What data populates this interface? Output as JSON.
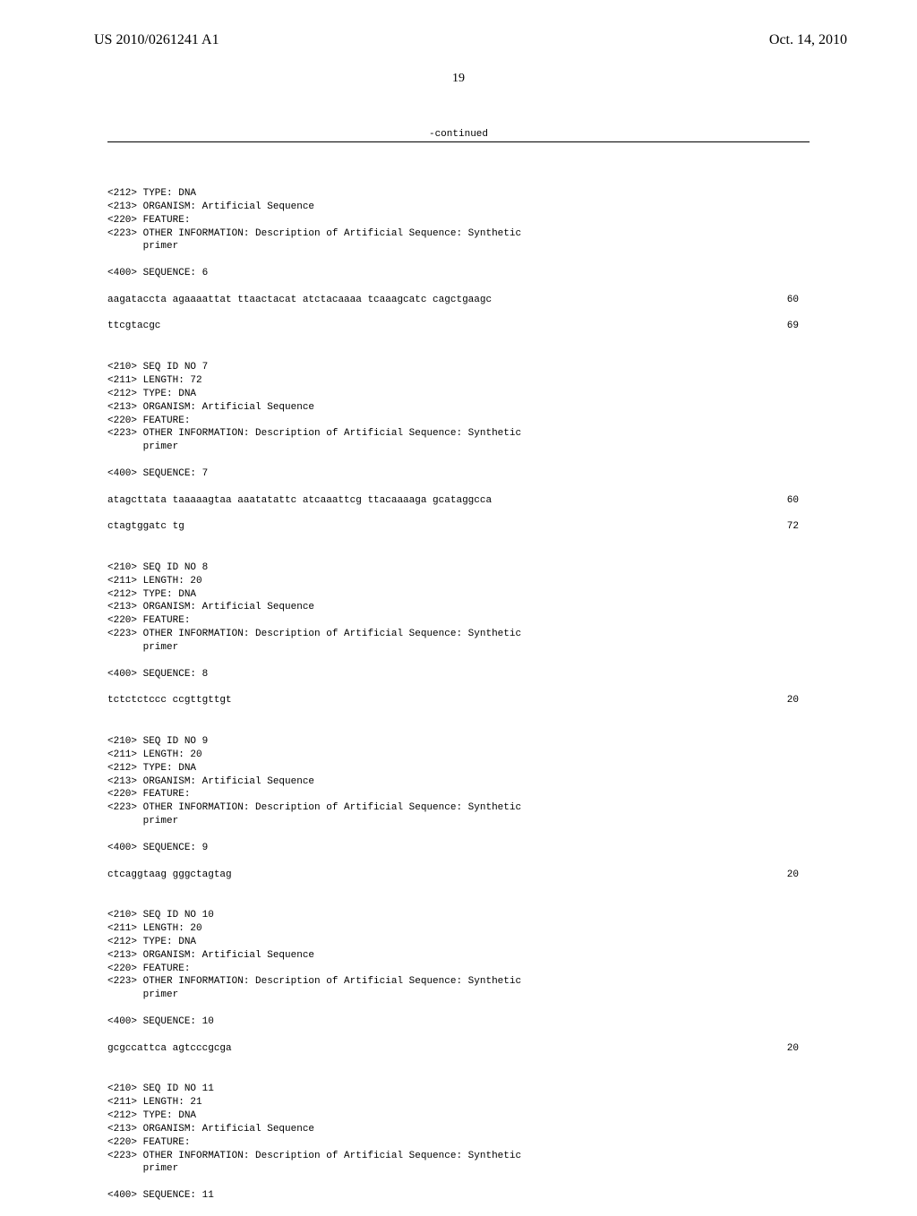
{
  "header": {
    "appNumber": "US 2010/0261241 A1",
    "date": "Oct. 14, 2010"
  },
  "pageNumber": "19",
  "continuedLabel": "-continued",
  "blocks": [
    {
      "meta": [
        "<212> TYPE: DNA",
        "<213> ORGANISM: Artificial Sequence",
        "<220> FEATURE:",
        "<223> OTHER INFORMATION: Description of Artificial Sequence: Synthetic",
        "      primer"
      ],
      "seqLabel": "<400> SEQUENCE: 6",
      "sequences": [
        {
          "text": "aagataccta agaaaattat ttaactacat atctacaaaa tcaaagcatc cagctgaagc",
          "num": "60"
        },
        {
          "text": "ttcgtacgc",
          "num": "69"
        }
      ]
    },
    {
      "meta": [
        "<210> SEQ ID NO 7",
        "<211> LENGTH: 72",
        "<212> TYPE: DNA",
        "<213> ORGANISM: Artificial Sequence",
        "<220> FEATURE:",
        "<223> OTHER INFORMATION: Description of Artificial Sequence: Synthetic",
        "      primer"
      ],
      "seqLabel": "<400> SEQUENCE: 7",
      "sequences": [
        {
          "text": "atagcttata taaaaagtaa aaatatattc atcaaattcg ttacaaaaga gcataggcca",
          "num": "60"
        },
        {
          "text": "ctagtggatc tg",
          "num": "72"
        }
      ]
    },
    {
      "meta": [
        "<210> SEQ ID NO 8",
        "<211> LENGTH: 20",
        "<212> TYPE: DNA",
        "<213> ORGANISM: Artificial Sequence",
        "<220> FEATURE:",
        "<223> OTHER INFORMATION: Description of Artificial Sequence: Synthetic",
        "      primer"
      ],
      "seqLabel": "<400> SEQUENCE: 8",
      "sequences": [
        {
          "text": "tctctctccc ccgttgttgt",
          "num": "20"
        }
      ]
    },
    {
      "meta": [
        "<210> SEQ ID NO 9",
        "<211> LENGTH: 20",
        "<212> TYPE: DNA",
        "<213> ORGANISM: Artificial Sequence",
        "<220> FEATURE:",
        "<223> OTHER INFORMATION: Description of Artificial Sequence: Synthetic",
        "      primer"
      ],
      "seqLabel": "<400> SEQUENCE: 9",
      "sequences": [
        {
          "text": "ctcaggtaag gggctagtag",
          "num": "20"
        }
      ]
    },
    {
      "meta": [
        "<210> SEQ ID NO 10",
        "<211> LENGTH: 20",
        "<212> TYPE: DNA",
        "<213> ORGANISM: Artificial Sequence",
        "<220> FEATURE:",
        "<223> OTHER INFORMATION: Description of Artificial Sequence: Synthetic",
        "      primer"
      ],
      "seqLabel": "<400> SEQUENCE: 10",
      "sequences": [
        {
          "text": "gcgccattca agtcccgcga",
          "num": "20"
        }
      ]
    },
    {
      "meta": [
        "<210> SEQ ID NO 11",
        "<211> LENGTH: 21",
        "<212> TYPE: DNA",
        "<213> ORGANISM: Artificial Sequence",
        "<220> FEATURE:",
        "<223> OTHER INFORMATION: Description of Artificial Sequence: Synthetic",
        "      primer"
      ],
      "seqLabel": "<400> SEQUENCE: 11",
      "sequences": []
    }
  ]
}
